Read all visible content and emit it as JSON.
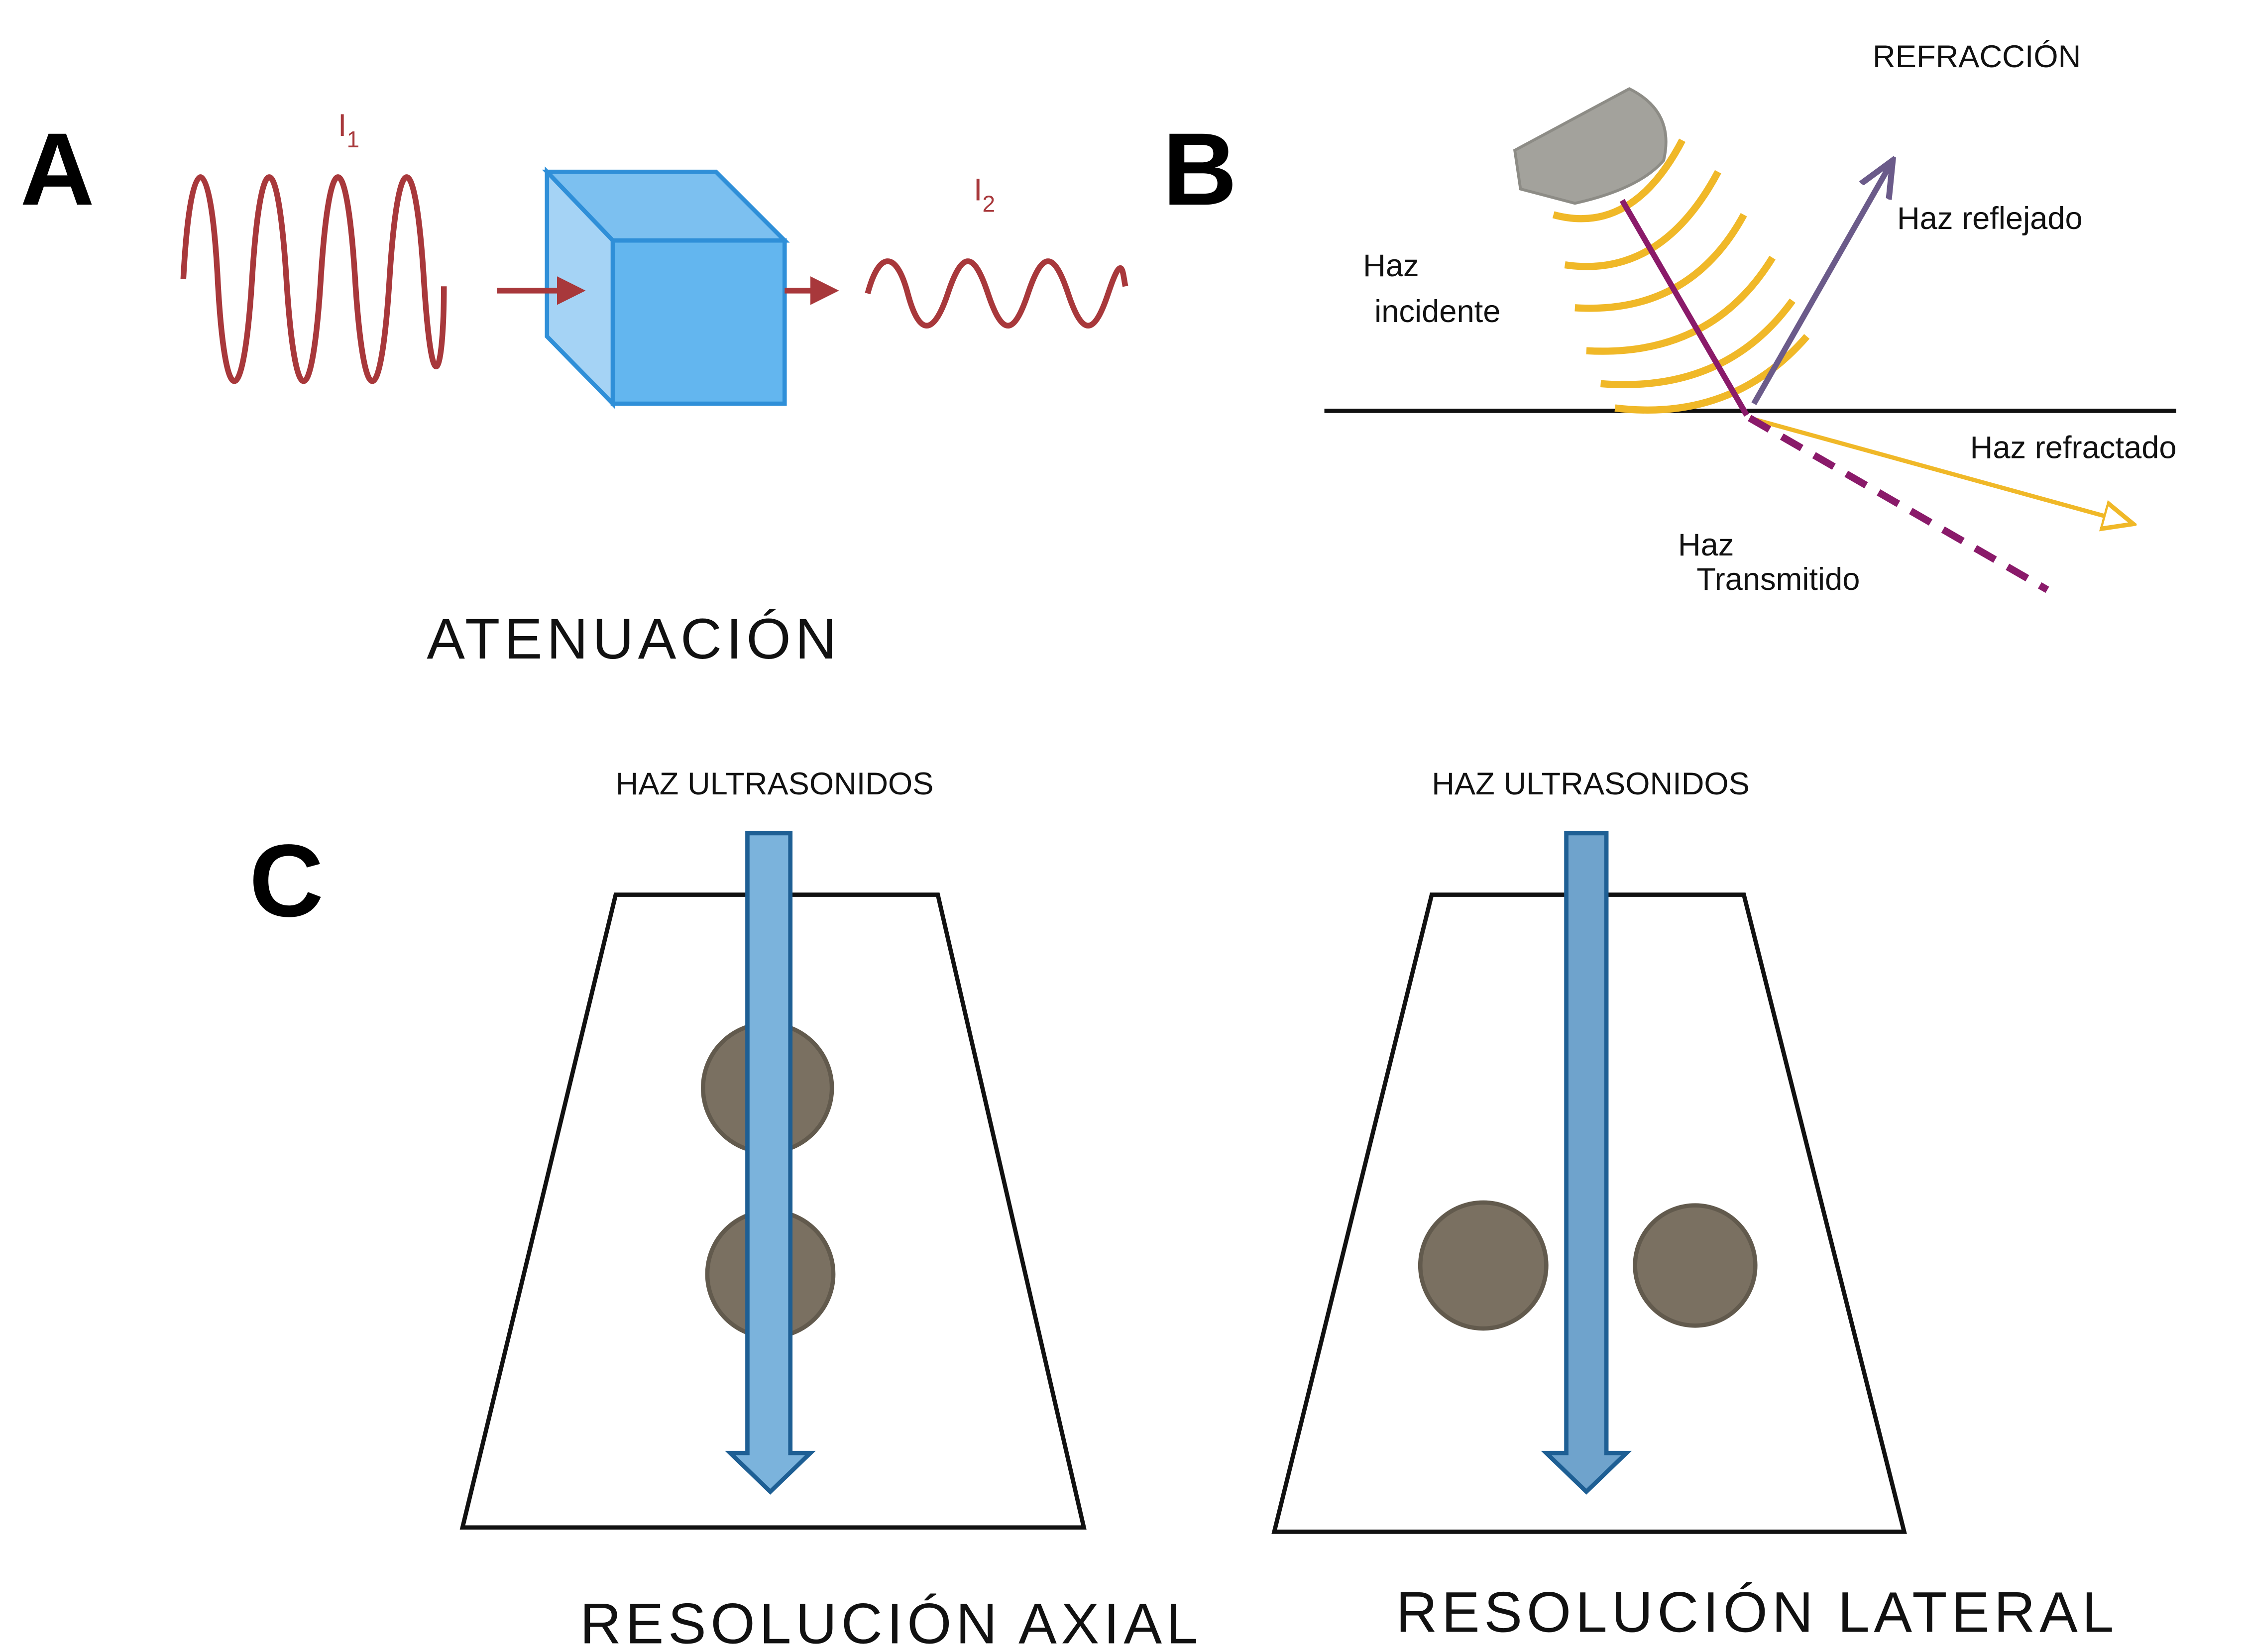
{
  "panels": {
    "a": {
      "label": "A",
      "input": {
        "symbol": "I",
        "subscript": "1"
      },
      "output": {
        "symbol": "I",
        "subscript": "2"
      },
      "caption": "ATENUACIÓN"
    },
    "b": {
      "label": "B",
      "title": "REFRACCIÓN",
      "labels": {
        "reflected": "Haz reflejado",
        "incident_1": "Haz",
        "incident_2": "incidente",
        "refracted": "Haz refractado",
        "transmitted_1": "Haz",
        "transmitted_2": "Transmitido"
      }
    },
    "c": {
      "label": "C",
      "diagrams": [
        {
          "beam": "HAZ ULTRASONIDOS",
          "caption": "RESOLUCIÓN AXIAL"
        },
        {
          "beam": "HAZ ULTRASONIDOS",
          "caption": "RESOLUCIÓN LATERAL"
        }
      ]
    }
  }
}
